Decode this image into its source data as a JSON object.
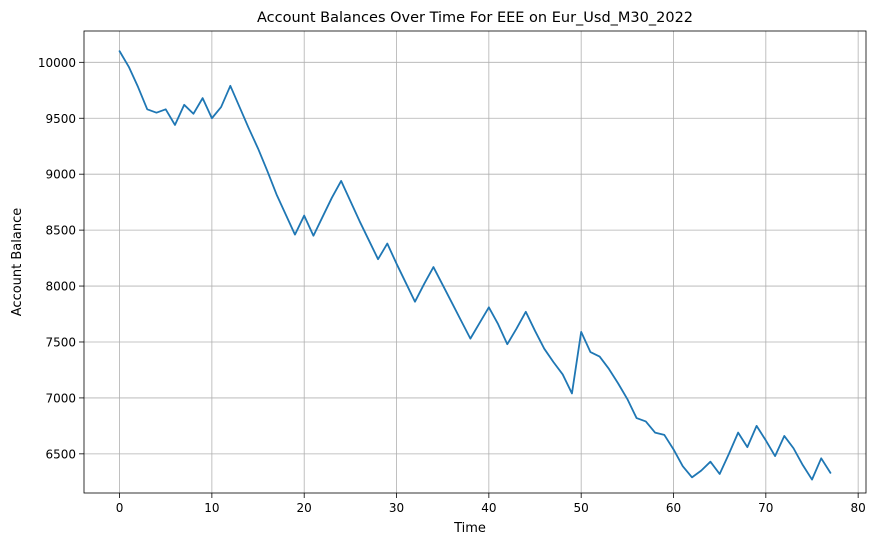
{
  "chart_data": {
    "type": "line",
    "title": "Account Balances Over Time For EEE on Eur_Usd_M30_2022",
    "xlabel": "Time",
    "ylabel": "Account Balance",
    "xlim": [
      -3.85,
      80.85
    ],
    "ylim": [
      6150,
      10280
    ],
    "xticks": [
      0,
      10,
      20,
      30,
      40,
      50,
      60,
      70,
      80
    ],
    "yticks": [
      6500,
      7000,
      7500,
      8000,
      8500,
      9000,
      9500,
      10000
    ],
    "grid": true,
    "line_color": "#1f77b4",
    "series": [
      {
        "x": [
          0,
          1,
          2,
          3,
          4,
          5,
          6,
          7,
          8,
          9,
          10,
          11,
          12,
          13,
          14,
          15,
          16,
          17,
          18,
          19,
          20,
          21,
          22,
          23,
          24,
          25,
          26,
          27,
          28,
          29,
          30,
          31,
          32,
          33,
          34,
          35,
          36,
          37,
          38,
          39,
          40,
          41,
          42,
          43,
          44,
          45,
          46,
          47,
          48,
          49,
          50,
          51,
          52,
          53,
          54,
          55,
          56,
          57,
          58,
          59,
          60,
          61,
          62,
          63,
          64,
          65,
          66,
          67,
          68,
          69,
          70,
          71,
          72,
          73,
          74,
          75,
          76,
          77
        ],
        "values": [
          10100,
          9960,
          9780,
          9580,
          9550,
          9580,
          9440,
          9620,
          9540,
          9680,
          9500,
          9600,
          9790,
          9600,
          9410,
          9230,
          9030,
          8820,
          8640,
          8460,
          8630,
          8450,
          8620,
          8790,
          8940,
          8760,
          8580,
          8410,
          8240,
          8380,
          8200,
          8030,
          7860,
          8020,
          8170,
          8010,
          7850,
          7690,
          7530,
          7670,
          7810,
          7660,
          7480,
          7620,
          7770,
          7600,
          7440,
          7320,
          7210,
          7040,
          7590,
          7410,
          7370,
          7260,
          7130,
          6990,
          6820,
          6790,
          6690,
          6670,
          6540,
          6390,
          6290,
          6350,
          6430,
          6320,
          6500,
          6690,
          6560,
          6750,
          6620,
          6480,
          6660,
          6550,
          6400,
          6270,
          6460,
          6330
        ]
      }
    ]
  }
}
